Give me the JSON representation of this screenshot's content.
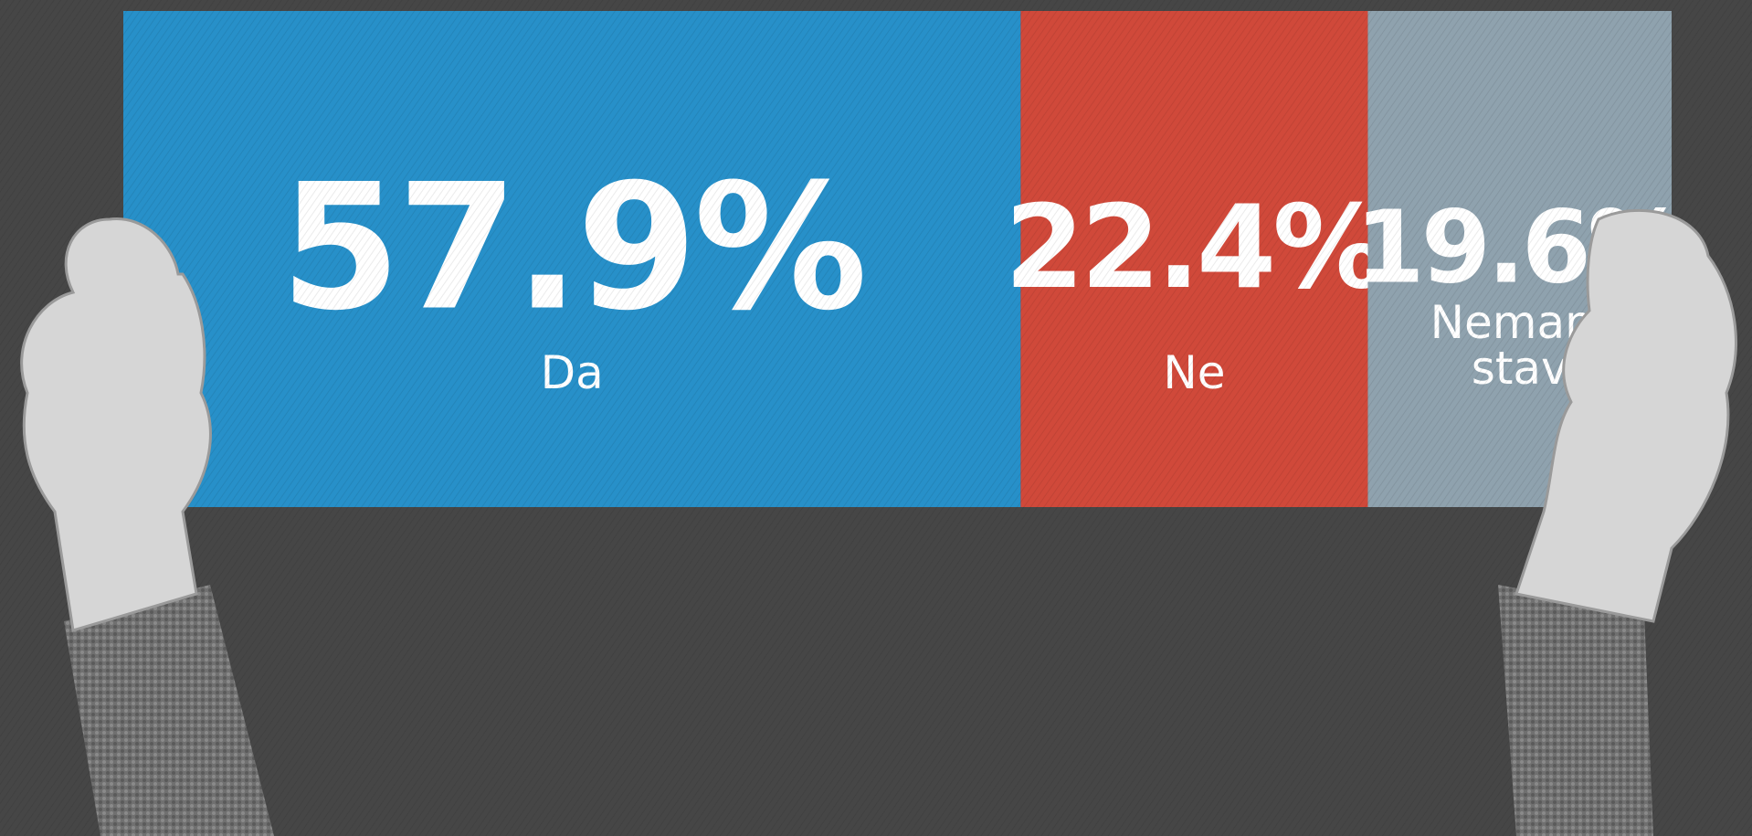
{
  "chart_data": {
    "type": "stacked_bar",
    "categories": [
      "Da",
      "Ne",
      "Nemam stav"
    ],
    "values": [
      57.9,
      22.4,
      19.6
    ],
    "value_labels": [
      "57.9%",
      "22.4%",
      "19.6%"
    ],
    "colors": [
      "#2790c9",
      "#d0493a",
      "#8fa2ae"
    ]
  }
}
